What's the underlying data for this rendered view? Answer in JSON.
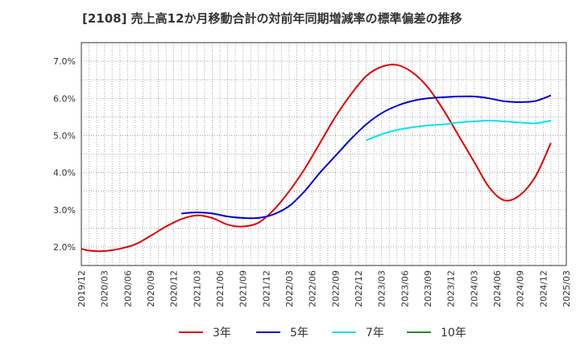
{
  "chart_data": {
    "type": "line",
    "title": "[2108]  売上高12か月移動合計の対前年同期増減率の標準偏差の推移",
    "xlabel": "",
    "ylabel": "",
    "x_ticks": [
      "2019/12",
      "2020/03",
      "2020/06",
      "2020/09",
      "2020/12",
      "2021/03",
      "2021/06",
      "2021/09",
      "2021/12",
      "2022/03",
      "2022/06",
      "2022/09",
      "2022/12",
      "2023/03",
      "2023/06",
      "2023/09",
      "2023/12",
      "2024/03",
      "2024/06",
      "2024/09",
      "2024/12",
      "2025/03"
    ],
    "y_ticks": [
      "2.0%",
      "3.0%",
      "4.0%",
      "5.0%",
      "6.0%",
      "7.0%"
    ],
    "ylim": [
      1.5,
      7.5
    ],
    "grid": true,
    "legend_position": "bottom",
    "series": [
      {
        "name": "3年",
        "color": "#dd0000",
        "values": [
          [
            "2019/12",
            1.95
          ],
          [
            "2020/01",
            1.9
          ],
          [
            "2020/03",
            1.89
          ],
          [
            "2020/05",
            1.95
          ],
          [
            "2020/07",
            2.07
          ],
          [
            "2020/09",
            2.3
          ],
          [
            "2020/11",
            2.55
          ],
          [
            "2021/01",
            2.75
          ],
          [
            "2021/03",
            2.85
          ],
          [
            "2021/05",
            2.78
          ],
          [
            "2021/07",
            2.6
          ],
          [
            "2021/09",
            2.55
          ],
          [
            "2021/11",
            2.65
          ],
          [
            "2022/01",
            3.0
          ],
          [
            "2022/03",
            3.5
          ],
          [
            "2022/05",
            4.1
          ],
          [
            "2022/07",
            4.8
          ],
          [
            "2022/09",
            5.5
          ],
          [
            "2022/11",
            6.1
          ],
          [
            "2023/01",
            6.6
          ],
          [
            "2023/03",
            6.85
          ],
          [
            "2023/05",
            6.9
          ],
          [
            "2023/07",
            6.7
          ],
          [
            "2023/09",
            6.3
          ],
          [
            "2023/11",
            5.7
          ],
          [
            "2024/01",
            5.0
          ],
          [
            "2024/03",
            4.3
          ],
          [
            "2024/05",
            3.6
          ],
          [
            "2024/07",
            3.25
          ],
          [
            "2024/09",
            3.4
          ],
          [
            "2024/11",
            3.9
          ],
          [
            "2025/01",
            4.8
          ]
        ]
      },
      {
        "name": "5年",
        "color": "#0000cc",
        "values": [
          [
            "2021/01",
            2.9
          ],
          [
            "2021/03",
            2.93
          ],
          [
            "2021/05",
            2.9
          ],
          [
            "2021/07",
            2.82
          ],
          [
            "2021/09",
            2.78
          ],
          [
            "2021/11",
            2.78
          ],
          [
            "2022/01",
            2.88
          ],
          [
            "2022/03",
            3.1
          ],
          [
            "2022/05",
            3.5
          ],
          [
            "2022/07",
            4.0
          ],
          [
            "2022/09",
            4.45
          ],
          [
            "2022/11",
            4.9
          ],
          [
            "2023/01",
            5.3
          ],
          [
            "2023/03",
            5.6
          ],
          [
            "2023/05",
            5.8
          ],
          [
            "2023/07",
            5.93
          ],
          [
            "2023/09",
            6.0
          ],
          [
            "2023/11",
            6.03
          ],
          [
            "2024/01",
            6.05
          ],
          [
            "2024/03",
            6.05
          ],
          [
            "2024/05",
            6.0
          ],
          [
            "2024/07",
            5.92
          ],
          [
            "2024/09",
            5.9
          ],
          [
            "2024/11",
            5.93
          ],
          [
            "2025/01",
            6.08
          ]
        ]
      },
      {
        "name": "7年",
        "color": "#00e5ee",
        "values": [
          [
            "2023/01",
            4.87
          ],
          [
            "2023/03",
            5.03
          ],
          [
            "2023/05",
            5.15
          ],
          [
            "2023/07",
            5.22
          ],
          [
            "2023/09",
            5.27
          ],
          [
            "2023/11",
            5.3
          ],
          [
            "2024/01",
            5.35
          ],
          [
            "2024/03",
            5.38
          ],
          [
            "2024/05",
            5.4
          ],
          [
            "2024/07",
            5.38
          ],
          [
            "2024/09",
            5.35
          ],
          [
            "2024/11",
            5.33
          ],
          [
            "2025/01",
            5.4
          ]
        ]
      },
      {
        "name": "10年",
        "color": "#228b22",
        "values": []
      }
    ]
  }
}
